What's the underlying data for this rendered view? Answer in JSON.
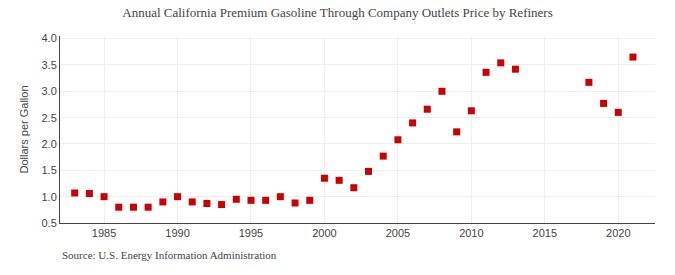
{
  "chart_data": {
    "type": "scatter",
    "title": "Annual California Premium Gasoline Through Company Outlets Price by Refiners",
    "ylabel": "Dollars per Gallon",
    "annotations": [
      "Source: U.S. Energy Information Administration"
    ],
    "x": [
      1983,
      1984,
      1985,
      1986,
      1987,
      1988,
      1989,
      1990,
      1991,
      1992,
      1993,
      1994,
      1995,
      1996,
      1997,
      1998,
      1999,
      2000,
      2001,
      2002,
      2003,
      2004,
      2005,
      2006,
      2007,
      2008,
      2009,
      2010,
      2011,
      2012,
      2013,
      2018,
      2019,
      2020,
      2021
    ],
    "values": [
      1.07,
      1.06,
      1.0,
      0.8,
      0.8,
      0.8,
      0.9,
      1.0,
      0.9,
      0.87,
      0.85,
      0.95,
      0.93,
      0.93,
      1.0,
      0.88,
      0.93,
      1.35,
      1.31,
      1.17,
      1.48,
      1.77,
      2.08,
      2.4,
      2.66,
      3.0,
      2.23,
      2.63,
      3.36,
      3.54,
      3.42,
      3.17,
      2.77,
      2.6,
      3.65
    ],
    "color": "#cc0000",
    "marker": "square",
    "xlim": [
      1982,
      2022.5
    ],
    "ylim": [
      0.5,
      4.05
    ],
    "xticks": [
      1985,
      1990,
      1995,
      2000,
      2005,
      2010,
      2015,
      2020
    ],
    "yticks": [
      0.5,
      {
        "value": 1.0,
        "label": "1.0"
      },
      1.5,
      {
        "value": 2.0,
        "label": "2.0"
      },
      2.5,
      {
        "value": 3.0,
        "label": "3.0"
      },
      3.5,
      {
        "value": 4.0,
        "label": "4.0"
      }
    ],
    "grid": true
  }
}
